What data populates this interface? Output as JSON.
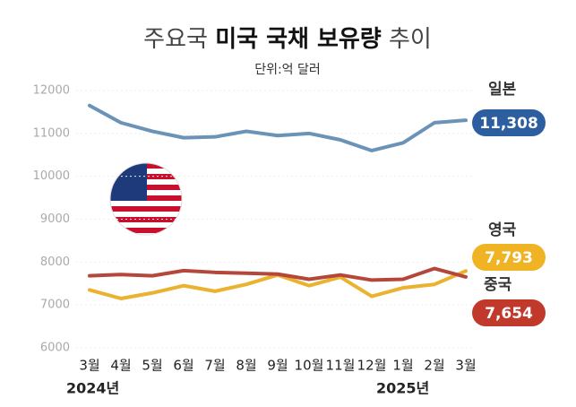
{
  "chart_data": {
    "type": "line",
    "title": {
      "prefix": "주요국",
      "emphasis": "미국 국채 보유량",
      "suffix": "추이"
    },
    "subtitle": "단위:억 달러",
    "categories": [
      "3월",
      "4월",
      "5월",
      "6월",
      "7월",
      "8월",
      "9월",
      "10월",
      "11월",
      "12월",
      "1월",
      "2월",
      "3월"
    ],
    "year_labels": [
      {
        "index": 0,
        "label": "2024년"
      },
      {
        "index": 10,
        "label": "2025년"
      }
    ],
    "series": [
      {
        "name": "일본",
        "color": "#2d5fa0",
        "line_color": "#6b93b8",
        "values": [
          11650,
          11250,
          11050,
          10900,
          10920,
          11050,
          10950,
          11000,
          10850,
          10600,
          10780,
          11250,
          11308
        ],
        "value_labels": [
          null,
          null,
          null,
          null,
          null,
          null,
          null,
          null,
          null,
          null,
          null,
          null,
          "11,308"
        ]
      },
      {
        "name": "영국",
        "color": "#f0b323",
        "line_color": "#eab22e",
        "values": [
          7350,
          7150,
          7280,
          7450,
          7320,
          7480,
          7700,
          7450,
          7650,
          7200,
          7400,
          7480,
          7793
        ],
        "value_labels": [
          null,
          null,
          null,
          null,
          null,
          null,
          null,
          null,
          null,
          null,
          null,
          null,
          "7,793"
        ]
      },
      {
        "name": "중국",
        "color": "#c0392b",
        "line_color": "#b5473a",
        "values": [
          7680,
          7710,
          7680,
          7800,
          7760,
          7740,
          7720,
          7600,
          7700,
          7580,
          7600,
          7850,
          7654
        ],
        "value_labels": [
          null,
          null,
          null,
          null,
          null,
          null,
          null,
          null,
          null,
          null,
          null,
          null,
          "7,654"
        ]
      }
    ],
    "ylim": [
      6000,
      12000
    ],
    "yticks": [
      6000,
      7000,
      8000,
      9000,
      10000,
      11000,
      12000
    ],
    "grid": true
  }
}
